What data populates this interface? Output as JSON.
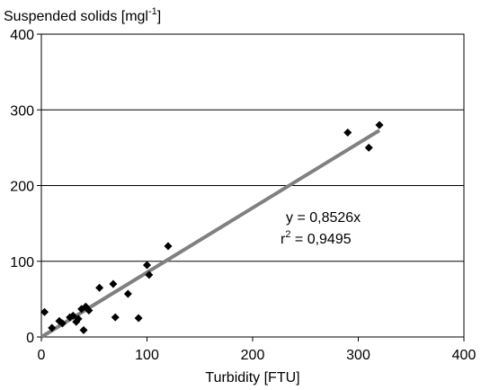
{
  "chart_data": {
    "type": "scatter",
    "title": "",
    "ylabel": {
      "text": "Suspended solids [mgl",
      "superscript": "-1",
      "suffix": "]"
    },
    "xlabel": "Turbidity [FTU]",
    "xlim": [
      0,
      400
    ],
    "ylim": [
      0,
      400
    ],
    "x_ticks": [
      "0",
      "100",
      "200",
      "300",
      "400"
    ],
    "y_ticks": [
      "0",
      "100",
      "200",
      "300",
      "400"
    ],
    "grid": "horizontal",
    "legend": "none",
    "marker": "diamond",
    "colors": {
      "points": "#000000",
      "trendline": "#808080",
      "grid": "#000000"
    },
    "points": [
      {
        "x": 3,
        "y": 33
      },
      {
        "x": 10,
        "y": 12
      },
      {
        "x": 17,
        "y": 21
      },
      {
        "x": 20,
        "y": 18
      },
      {
        "x": 27,
        "y": 26
      },
      {
        "x": 30,
        "y": 28
      },
      {
        "x": 33,
        "y": 20
      },
      {
        "x": 35,
        "y": 24
      },
      {
        "x": 38,
        "y": 37
      },
      {
        "x": 40,
        "y": 9
      },
      {
        "x": 42,
        "y": 40
      },
      {
        "x": 45,
        "y": 35
      },
      {
        "x": 55,
        "y": 65
      },
      {
        "x": 68,
        "y": 70
      },
      {
        "x": 70,
        "y": 26
      },
      {
        "x": 82,
        "y": 57
      },
      {
        "x": 92,
        "y": 25
      },
      {
        "x": 100,
        "y": 95
      },
      {
        "x": 102,
        "y": 82
      },
      {
        "x": 120,
        "y": 120
      },
      {
        "x": 290,
        "y": 270
      },
      {
        "x": 310,
        "y": 250
      },
      {
        "x": 320,
        "y": 280
      }
    ],
    "trendline": {
      "slope": 0.8526,
      "x_range": [
        0,
        320
      ],
      "equation": "y = 0,8526x",
      "r2_text": {
        "base": "r",
        "superscript": "2",
        "value": " = 0,9495"
      }
    }
  }
}
